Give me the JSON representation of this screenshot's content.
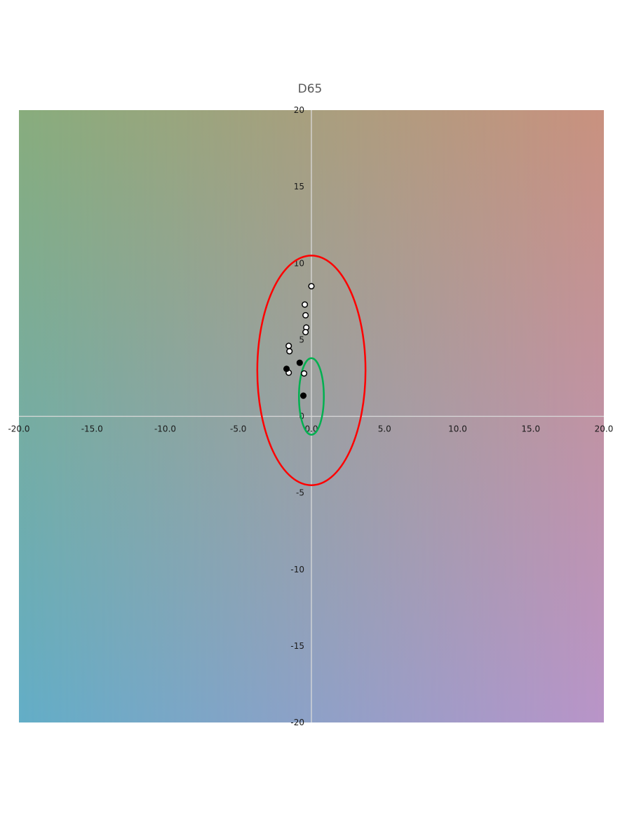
{
  "chart_data": {
    "type": "scatter",
    "title": "D65",
    "xlabel": "",
    "ylabel": "",
    "xlim": [
      -20,
      20
    ],
    "ylim": [
      -20,
      20
    ],
    "grid": false,
    "legend": "none",
    "x_ticks": [
      "-20.0",
      "-15.0",
      "-10.0",
      "-5.0",
      "0.0",
      "5.0",
      "10.0",
      "15.0",
      "20.0"
    ],
    "y_ticks": [
      "20",
      "15",
      "10",
      "5",
      "0",
      "-5",
      "-10",
      "-15",
      "-20"
    ],
    "x_tick_values": [
      -20,
      -15,
      -10,
      -5,
      0,
      5,
      10,
      15,
      20
    ],
    "y_tick_values": [
      20,
      15,
      10,
      5,
      0,
      -5,
      -10,
      -15,
      -20
    ],
    "background_gradient": {
      "top_left": "#88ad7d",
      "top_right": "#c9917f",
      "bottom_left": "#63aec7",
      "bottom_right": "#b994c8"
    },
    "axis_color": "#d9d9d9",
    "series": [
      {
        "marker": "open-circle",
        "fill": "#ffffff",
        "stroke": "#000000",
        "points": [
          {
            "x": 0.0,
            "y": 8.5
          },
          {
            "x": -0.45,
            "y": 7.3
          },
          {
            "x": -0.4,
            "y": 6.6
          },
          {
            "x": -0.35,
            "y": 5.8
          },
          {
            "x": -0.4,
            "y": 5.5
          },
          {
            "x": -1.55,
            "y": 4.6
          },
          {
            "x": -1.5,
            "y": 4.25
          },
          {
            "x": -1.55,
            "y": 2.85
          },
          {
            "x": -0.5,
            "y": 2.8
          }
        ]
      },
      {
        "marker": "filled-circle",
        "fill": "#000000",
        "stroke": "#000000",
        "points": [
          {
            "x": -1.7,
            "y": 3.1
          },
          {
            "x": -0.8,
            "y": 3.5
          },
          {
            "x": -0.55,
            "y": 1.35
          }
        ]
      }
    ],
    "ellipses": [
      {
        "color": "#ff0000",
        "cx": 0.0,
        "cy": 3.0,
        "rx": 3.7,
        "ry": 7.5
      },
      {
        "color": "#00b050",
        "cx": 0.0,
        "cy": 1.3,
        "rx": 0.85,
        "ry": 2.5
      }
    ]
  }
}
